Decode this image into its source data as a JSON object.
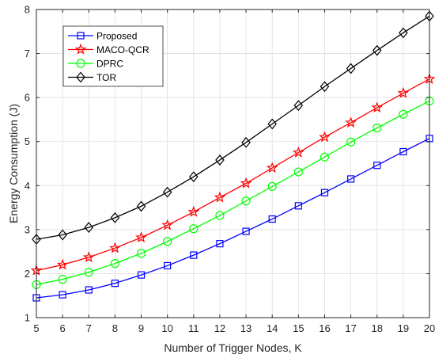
{
  "chart_data": {
    "type": "line",
    "title": "",
    "xlabel": "Number of Trigger Nodes, K",
    "ylabel": "Energy Consumption (J)",
    "xlim": [
      5,
      20
    ],
    "ylim": [
      1,
      8
    ],
    "xticks": [
      5,
      6,
      7,
      8,
      9,
      10,
      11,
      12,
      13,
      14,
      15,
      16,
      17,
      18,
      19,
      20
    ],
    "yticks": [
      1,
      2,
      3,
      4,
      5,
      6,
      7,
      8
    ],
    "grid": true,
    "legend_position": "top-left",
    "x": [
      5,
      6,
      7,
      8,
      9,
      10,
      11,
      12,
      13,
      14,
      15,
      16,
      17,
      18,
      19,
      20
    ],
    "series": [
      {
        "name": "Proposed",
        "color": "#0000ff",
        "marker": "square",
        "values": [
          1.45,
          1.52,
          1.63,
          1.78,
          1.97,
          2.18,
          2.42,
          2.68,
          2.96,
          3.24,
          3.54,
          3.84,
          4.15,
          4.46,
          4.77,
          5.07
        ]
      },
      {
        "name": "MACO-QCR",
        "color": "#ff0000",
        "marker": "star",
        "values": [
          2.07,
          2.2,
          2.37,
          2.58,
          2.82,
          3.1,
          3.4,
          3.73,
          4.05,
          4.4,
          4.75,
          5.1,
          5.43,
          5.77,
          6.1,
          6.42
        ]
      },
      {
        "name": "DPRC",
        "color": "#00ff00",
        "marker": "circle",
        "values": [
          1.75,
          1.87,
          2.03,
          2.23,
          2.46,
          2.73,
          3.02,
          3.32,
          3.65,
          3.98,
          4.31,
          4.65,
          4.99,
          5.31,
          5.62,
          5.92
        ]
      },
      {
        "name": "TOR",
        "color": "#000000",
        "marker": "diamond",
        "values": [
          2.78,
          2.88,
          3.05,
          3.27,
          3.53,
          3.85,
          4.2,
          4.58,
          4.98,
          5.4,
          5.82,
          6.25,
          6.66,
          7.07,
          7.47,
          7.85
        ]
      }
    ]
  }
}
